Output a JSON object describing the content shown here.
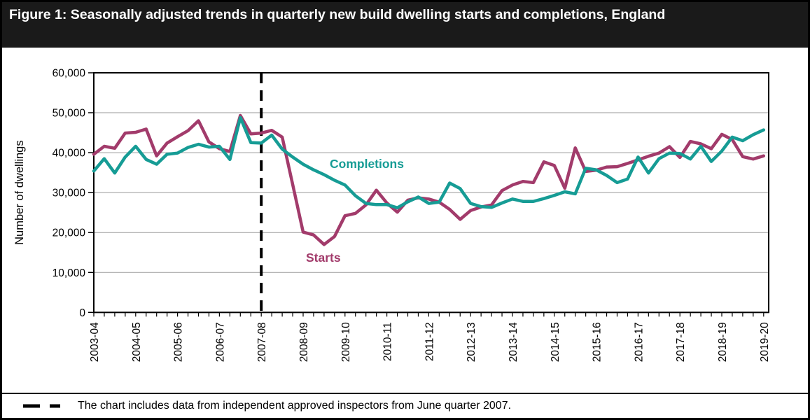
{
  "figure": {
    "title": "Figure 1: Seasonally adjusted trends in quarterly new build dwelling starts and completions, England",
    "titlebar_bg": "#1a1a1a",
    "title_color": "#ffffff"
  },
  "chart_data": {
    "type": "line",
    "title": "Figure 1: Seasonally adjusted trends in quarterly new build dwelling starts and completions, England",
    "xlabel": "",
    "ylabel": "Number of dwellings",
    "x_unit": "quarter",
    "x_start": "2003-04 Q1",
    "x_end": "2019-20 Q1",
    "quarters_per_year": 4,
    "categories": [
      "2003-04",
      "2004-05",
      "2005-06",
      "2006-07",
      "2007-08",
      "2008-09",
      "2009-10",
      "2010-11",
      "2011-12",
      "2012-13",
      "2013-14",
      "2014-15",
      "2015-16",
      "2016-17",
      "2017-18",
      "2018-19",
      "2019-20"
    ],
    "ylim": [
      0,
      60000
    ],
    "ytick_step": 10000,
    "grid": "horizontal",
    "gridline_color": "#9a9a9a",
    "series": [
      {
        "name": "Starts",
        "color": "#A23B6B",
        "label_pos": {
          "x": 434,
          "y": 306
        },
        "values": [
          39600,
          41600,
          41100,
          44900,
          45100,
          45900,
          39200,
          42400,
          44000,
          45500,
          48000,
          42700,
          41000,
          40300,
          49300,
          44700,
          44900,
          45600,
          43900,
          32000,
          20100,
          19400,
          17000,
          19000,
          24200,
          24800,
          26900,
          30600,
          27400,
          25100,
          28100,
          28700,
          28400,
          27600,
          25800,
          23300,
          25500,
          26400,
          26900,
          30500,
          31900,
          32800,
          32500,
          37700,
          36800,
          31100,
          41200,
          35300,
          35600,
          36400,
          36500,
          37300,
          38200,
          39100,
          39900,
          41500,
          38800,
          42800,
          42200,
          41000,
          44600,
          43300,
          39000,
          38400,
          39200
        ]
      },
      {
        "name": "Completions",
        "color": "#169C95",
        "label_pos": {
          "x": 468,
          "y": 172
        },
        "values": [
          35400,
          38500,
          34900,
          38900,
          41600,
          38300,
          37100,
          39600,
          39900,
          41300,
          42100,
          41400,
          41600,
          38300,
          48800,
          42500,
          42400,
          44400,
          40900,
          38900,
          37100,
          35700,
          34500,
          33100,
          31900,
          29200,
          27300,
          27000,
          27000,
          26200,
          27700,
          28900,
          27300,
          27600,
          32400,
          31000,
          27300,
          26500,
          26300,
          27400,
          28400,
          27800,
          27800,
          28500,
          29300,
          30200,
          29700,
          36100,
          35700,
          34300,
          32500,
          33400,
          38900,
          34900,
          38500,
          39900,
          39800,
          38400,
          41600,
          37800,
          40400,
          43900,
          43000,
          44500,
          45700
        ]
      }
    ],
    "annotations": {
      "dashed_vline": {
        "x_index": 16,
        "note": "June quarter 2007"
      }
    }
  },
  "footnote": {
    "text": "The chart includes data from independent approved inspectors from June quarter 2007."
  }
}
